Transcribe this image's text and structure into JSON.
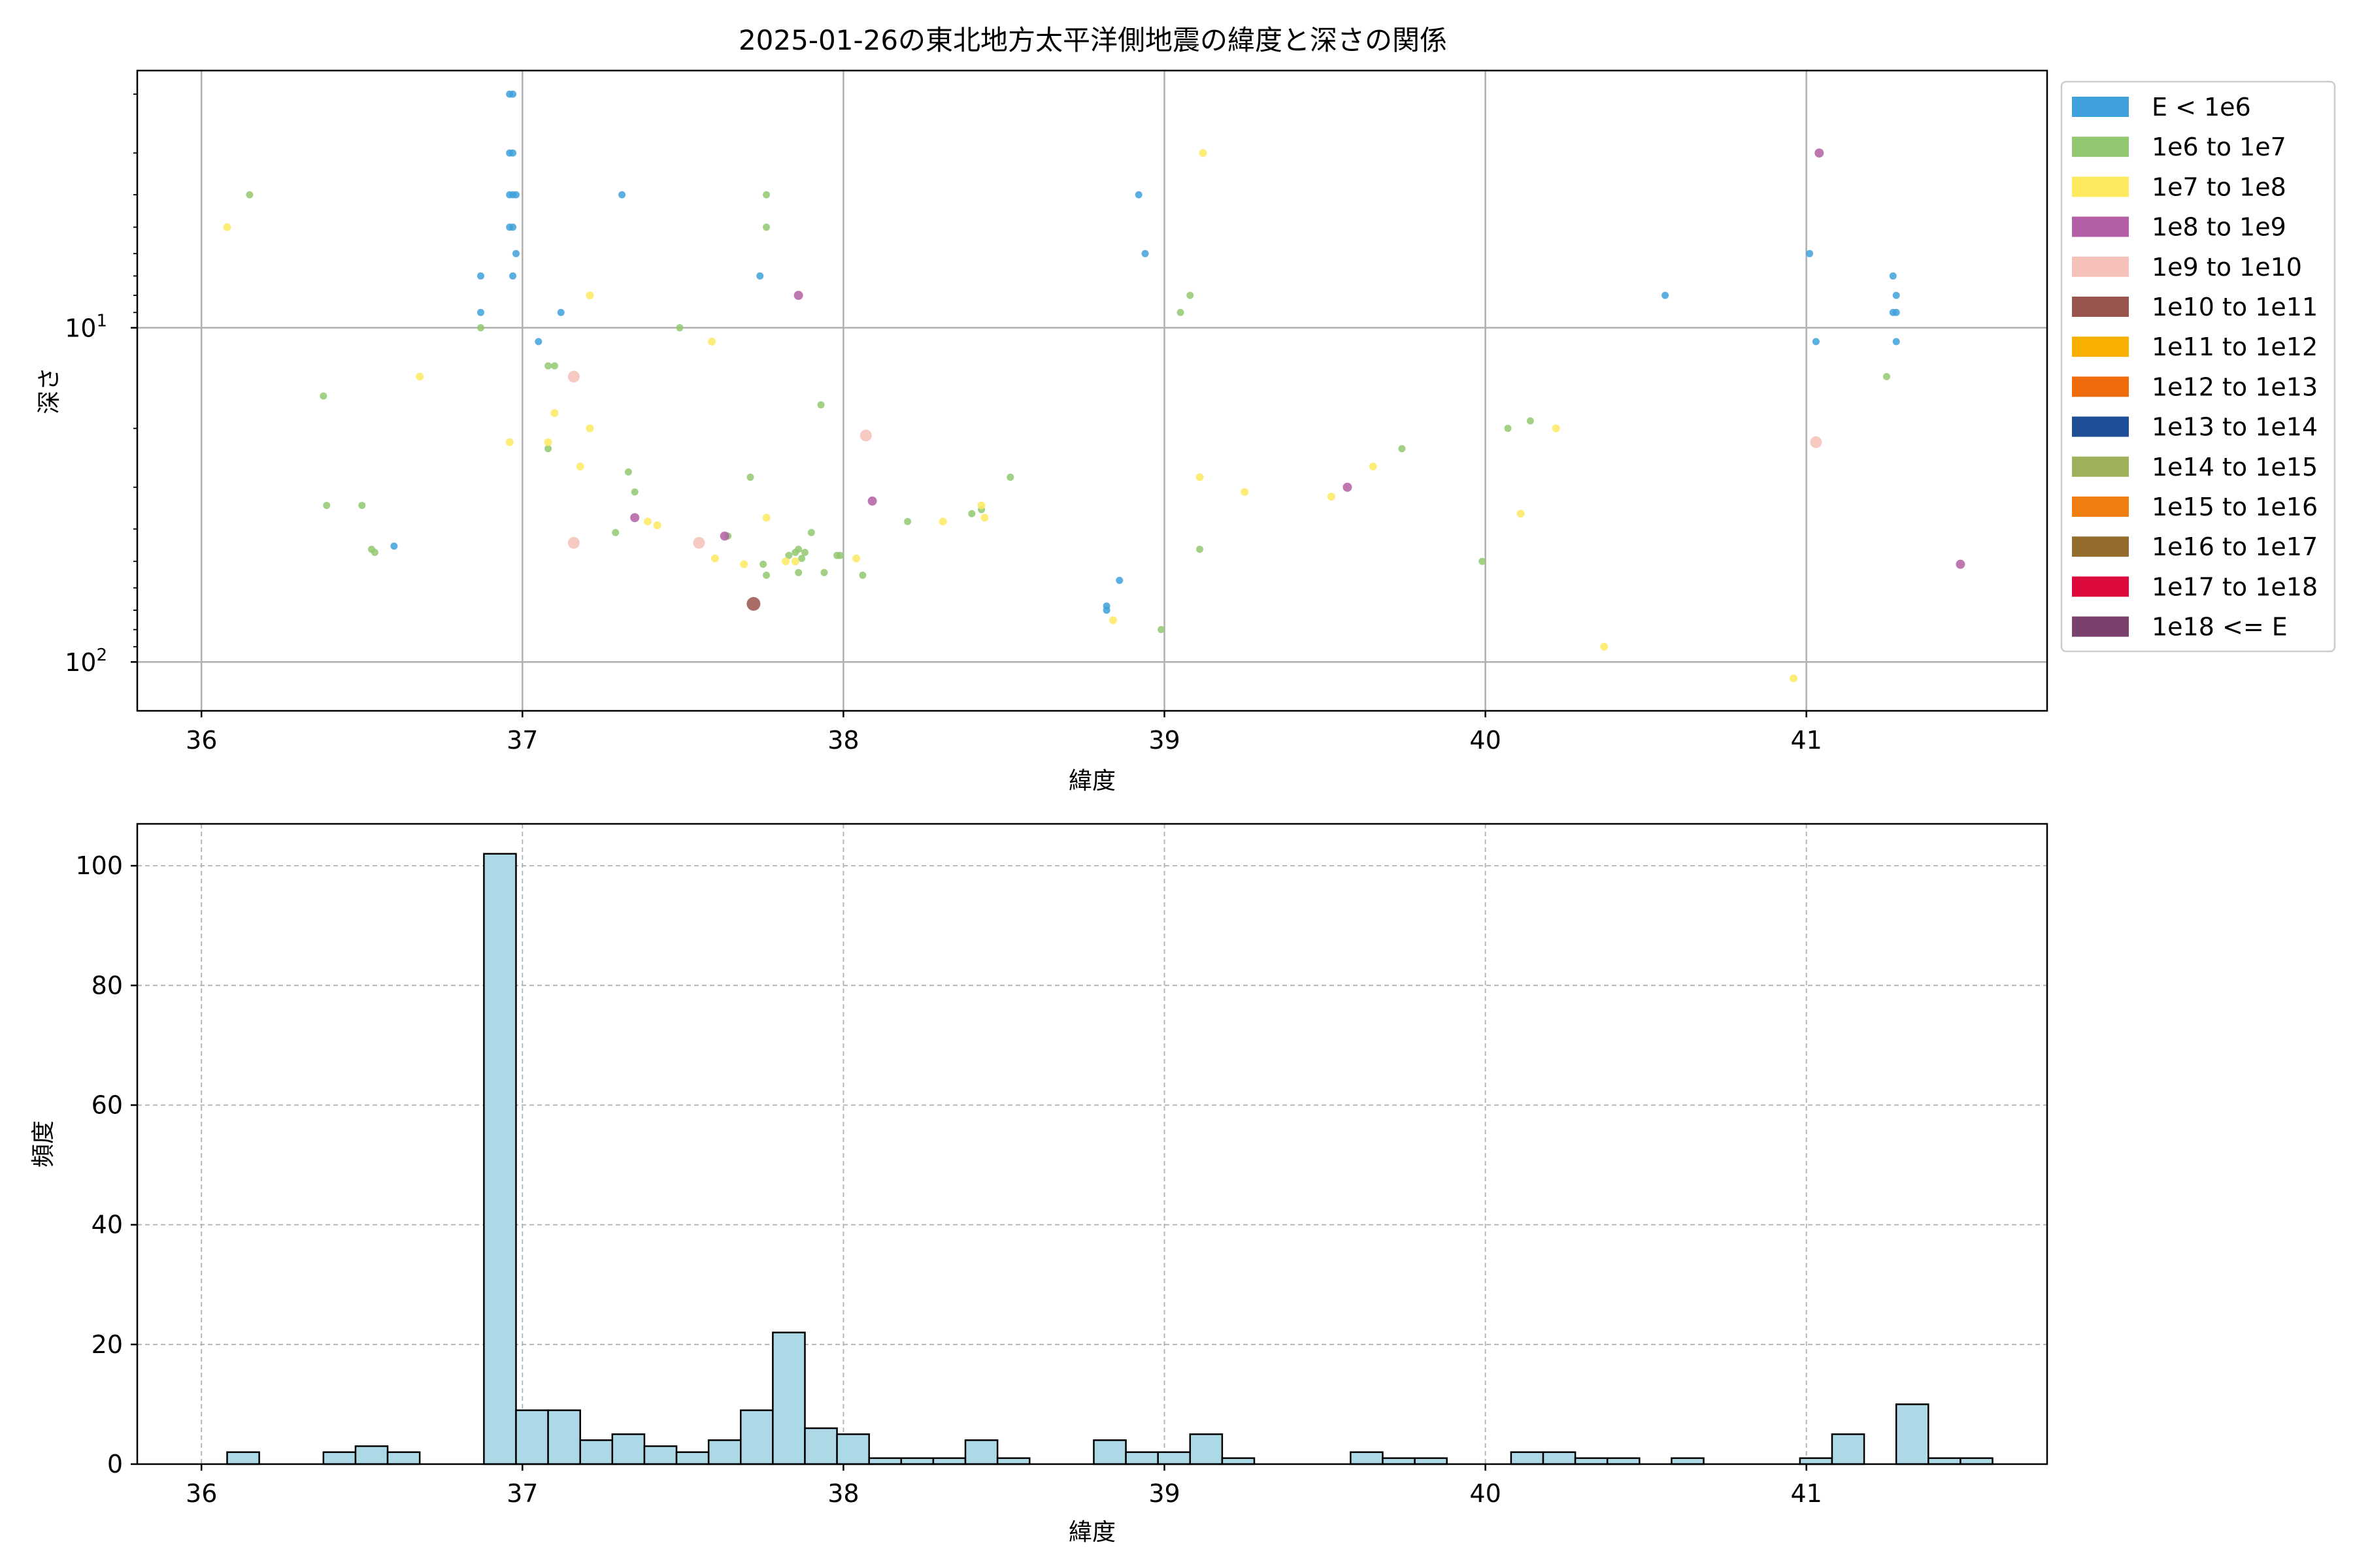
{
  "chart_data": [
    {
      "type": "scatter",
      "title": "2025-01-26の東北地方太平洋側地震の緯度と深さの関係",
      "xlabel": "緯度",
      "ylabel": "深さ",
      "xlim": [
        35.8,
        41.75
      ],
      "ylim": [
        140,
        1.7
      ],
      "yscale": "log",
      "y_inverted": true,
      "grid": true,
      "x_ticks": [
        "36",
        "37",
        "38",
        "39",
        "40",
        "41"
      ],
      "y_tick_labels": [
        {
          "value": 10,
          "base": "10",
          "exp": "1"
        },
        {
          "value": 100,
          "base": "10",
          "exp": "2"
        }
      ],
      "legend_position": "outside-right",
      "categories": [
        {
          "label": "E < 1e6",
          "color": "#3fa1dc"
        },
        {
          "label": "1e6 to 1e7",
          "color": "#92c970"
        },
        {
          "label": "1e7 to 1e8",
          "color": "#fdea60"
        },
        {
          "label": "1e8 to 1e9",
          "color": "#b45fa5"
        },
        {
          "label": "1e9 to 1e10",
          "color": "#f5c1b8"
        },
        {
          "label": "1e10 to 1e11",
          "color": "#9a544e"
        },
        {
          "label": "1e11 to 1e12",
          "color": "#f7b000"
        },
        {
          "label": "1e12 to 1e13",
          "color": "#ef6a0a"
        },
        {
          "label": "1e13 to 1e14",
          "color": "#1f4e96"
        },
        {
          "label": "1e14 to 1e15",
          "color": "#9eb15a"
        },
        {
          "label": "1e15 to 1e16",
          "color": "#ef7d10"
        },
        {
          "label": "1e16 to 1e17",
          "color": "#946c2c"
        },
        {
          "label": "1e17 to 1e18",
          "color": "#dc0a3c"
        },
        {
          "label": "1e18 <= E",
          "color": "#7a416d"
        }
      ],
      "points": [
        {
          "x": 36.97,
          "y": 2,
          "c": 0
        },
        {
          "x": 36.96,
          "y": 2,
          "c": 0
        },
        {
          "x": 36.97,
          "y": 3,
          "c": 0
        },
        {
          "x": 36.96,
          "y": 3,
          "c": 0
        },
        {
          "x": 36.97,
          "y": 4,
          "c": 0
        },
        {
          "x": 36.96,
          "y": 4,
          "c": 0
        },
        {
          "x": 36.98,
          "y": 4,
          "c": 0
        },
        {
          "x": 36.97,
          "y": 5,
          "c": 0
        },
        {
          "x": 36.96,
          "y": 5,
          "c": 0
        },
        {
          "x": 36.98,
          "y": 6,
          "c": 0
        },
        {
          "x": 36.97,
          "y": 7,
          "c": 0
        },
        {
          "x": 36.87,
          "y": 7,
          "c": 0
        },
        {
          "x": 36.87,
          "y": 9,
          "c": 0
        },
        {
          "x": 37.05,
          "y": 11,
          "c": 0
        },
        {
          "x": 37.12,
          "y": 9,
          "c": 0
        },
        {
          "x": 37.31,
          "y": 4,
          "c": 0
        },
        {
          "x": 37.74,
          "y": 7,
          "c": 0
        },
        {
          "x": 38.92,
          "y": 4,
          "c": 0
        },
        {
          "x": 38.94,
          "y": 6,
          "c": 0
        },
        {
          "x": 36.6,
          "y": 45,
          "c": 0
        },
        {
          "x": 38.82,
          "y": 68,
          "c": 0
        },
        {
          "x": 38.82,
          "y": 70,
          "c": 0
        },
        {
          "x": 38.86,
          "y": 57,
          "c": 0
        },
        {
          "x": 40.56,
          "y": 8,
          "c": 0
        },
        {
          "x": 41.01,
          "y": 6,
          "c": 0
        },
        {
          "x": 41.03,
          "y": 11,
          "c": 0
        },
        {
          "x": 41.27,
          "y": 7,
          "c": 0
        },
        {
          "x": 41.28,
          "y": 8,
          "c": 0
        },
        {
          "x": 41.27,
          "y": 9,
          "c": 0
        },
        {
          "x": 41.28,
          "y": 9,
          "c": 0
        },
        {
          "x": 41.28,
          "y": 11,
          "c": 0
        },
        {
          "x": 36.15,
          "y": 4,
          "c": 1
        },
        {
          "x": 36.38,
          "y": 16,
          "c": 1
        },
        {
          "x": 36.39,
          "y": 34,
          "c": 1
        },
        {
          "x": 36.5,
          "y": 34,
          "c": 1
        },
        {
          "x": 36.53,
          "y": 46,
          "c": 1
        },
        {
          "x": 36.54,
          "y": 47,
          "c": 1
        },
        {
          "x": 36.87,
          "y": 10,
          "c": 1
        },
        {
          "x": 37.08,
          "y": 23,
          "c": 1
        },
        {
          "x": 37.08,
          "y": 13,
          "c": 1
        },
        {
          "x": 37.1,
          "y": 13,
          "c": 1
        },
        {
          "x": 37.29,
          "y": 41,
          "c": 1
        },
        {
          "x": 37.33,
          "y": 27,
          "c": 1
        },
        {
          "x": 37.35,
          "y": 31,
          "c": 1
        },
        {
          "x": 37.49,
          "y": 10,
          "c": 1
        },
        {
          "x": 37.64,
          "y": 42,
          "c": 1
        },
        {
          "x": 37.71,
          "y": 28,
          "c": 1
        },
        {
          "x": 37.75,
          "y": 51,
          "c": 1
        },
        {
          "x": 37.76,
          "y": 55,
          "c": 1
        },
        {
          "x": 37.76,
          "y": 4,
          "c": 1
        },
        {
          "x": 37.76,
          "y": 5,
          "c": 1
        },
        {
          "x": 37.83,
          "y": 48,
          "c": 1
        },
        {
          "x": 37.85,
          "y": 47,
          "c": 1
        },
        {
          "x": 37.86,
          "y": 46,
          "c": 1
        },
        {
          "x": 37.87,
          "y": 49,
          "c": 1
        },
        {
          "x": 37.86,
          "y": 54,
          "c": 1
        },
        {
          "x": 37.88,
          "y": 47,
          "c": 1
        },
        {
          "x": 37.9,
          "y": 41,
          "c": 1
        },
        {
          "x": 37.93,
          "y": 17,
          "c": 1
        },
        {
          "x": 37.94,
          "y": 54,
          "c": 1
        },
        {
          "x": 37.98,
          "y": 48,
          "c": 1
        },
        {
          "x": 37.99,
          "y": 48,
          "c": 1
        },
        {
          "x": 38.06,
          "y": 55,
          "c": 1
        },
        {
          "x": 38.2,
          "y": 38,
          "c": 1
        },
        {
          "x": 38.4,
          "y": 36,
          "c": 1
        },
        {
          "x": 38.43,
          "y": 35,
          "c": 1
        },
        {
          "x": 38.52,
          "y": 28,
          "c": 1
        },
        {
          "x": 38.99,
          "y": 80,
          "c": 1
        },
        {
          "x": 39.05,
          "y": 9,
          "c": 1
        },
        {
          "x": 39.08,
          "y": 8,
          "c": 1
        },
        {
          "x": 39.11,
          "y": 46,
          "c": 1
        },
        {
          "x": 39.74,
          "y": 23,
          "c": 1
        },
        {
          "x": 39.99,
          "y": 50,
          "c": 1
        },
        {
          "x": 40.07,
          "y": 20,
          "c": 1
        },
        {
          "x": 40.14,
          "y": 19,
          "c": 1
        },
        {
          "x": 41.25,
          "y": 14,
          "c": 1
        },
        {
          "x": 36.08,
          "y": 5,
          "c": 2
        },
        {
          "x": 36.68,
          "y": 14,
          "c": 2
        },
        {
          "x": 36.96,
          "y": 22,
          "c": 2
        },
        {
          "x": 37.08,
          "y": 22,
          "c": 2
        },
        {
          "x": 37.1,
          "y": 18,
          "c": 2
        },
        {
          "x": 37.18,
          "y": 26,
          "c": 2
        },
        {
          "x": 37.21,
          "y": 8,
          "c": 2
        },
        {
          "x": 37.21,
          "y": 20,
          "c": 2
        },
        {
          "x": 37.39,
          "y": 38,
          "c": 2
        },
        {
          "x": 37.42,
          "y": 39,
          "c": 2
        },
        {
          "x": 37.59,
          "y": 11,
          "c": 2
        },
        {
          "x": 37.6,
          "y": 49,
          "c": 2
        },
        {
          "x": 37.69,
          "y": 51,
          "c": 2
        },
        {
          "x": 37.76,
          "y": 37,
          "c": 2
        },
        {
          "x": 37.82,
          "y": 50,
          "c": 2
        },
        {
          "x": 37.85,
          "y": 50,
          "c": 2
        },
        {
          "x": 38.04,
          "y": 49,
          "c": 2
        },
        {
          "x": 38.31,
          "y": 38,
          "c": 2
        },
        {
          "x": 38.43,
          "y": 34,
          "c": 2
        },
        {
          "x": 38.44,
          "y": 37,
          "c": 2
        },
        {
          "x": 38.84,
          "y": 75,
          "c": 2
        },
        {
          "x": 39.12,
          "y": 3,
          "c": 2
        },
        {
          "x": 39.11,
          "y": 28,
          "c": 2
        },
        {
          "x": 39.25,
          "y": 31,
          "c": 2
        },
        {
          "x": 39.52,
          "y": 32,
          "c": 2
        },
        {
          "x": 39.65,
          "y": 26,
          "c": 2
        },
        {
          "x": 40.11,
          "y": 36,
          "c": 2
        },
        {
          "x": 40.22,
          "y": 20,
          "c": 2
        },
        {
          "x": 40.37,
          "y": 90,
          "c": 2
        },
        {
          "x": 40.96,
          "y": 112,
          "c": 2
        },
        {
          "x": 37.35,
          "y": 37,
          "c": 3
        },
        {
          "x": 37.63,
          "y": 42,
          "c": 3
        },
        {
          "x": 37.86,
          "y": 8,
          "c": 3
        },
        {
          "x": 38.09,
          "y": 33,
          "c": 3
        },
        {
          "x": 39.57,
          "y": 30,
          "c": 3
        },
        {
          "x": 41.04,
          "y": 3,
          "c": 3
        },
        {
          "x": 41.48,
          "y": 51,
          "c": 3
        },
        {
          "x": 37.16,
          "y": 14,
          "c": 4
        },
        {
          "x": 37.16,
          "y": 44,
          "c": 4
        },
        {
          "x": 37.55,
          "y": 44,
          "c": 4
        },
        {
          "x": 38.07,
          "y": 21,
          "c": 4
        },
        {
          "x": 41.03,
          "y": 22,
          "c": 4
        },
        {
          "x": 37.72,
          "y": 67,
          "c": 5
        }
      ]
    },
    {
      "type": "bar",
      "subtype": "histogram",
      "xlabel": "緯度",
      "ylabel": "頻度",
      "xlim": [
        35.8,
        41.75
      ],
      "ylim": [
        0,
        107
      ],
      "x_ticks": [
        "36",
        "37",
        "38",
        "39",
        "40",
        "41"
      ],
      "y_ticks": [
        "0",
        "20",
        "40",
        "60",
        "80",
        "100"
      ],
      "grid": true,
      "bar_color": "#add8e6",
      "bin_start": 36.08,
      "bin_width": 0.1,
      "values": [
        2,
        0,
        0,
        2,
        3,
        2,
        0,
        0,
        102,
        9,
        9,
        4,
        5,
        3,
        2,
        4,
        9,
        22,
        6,
        5,
        1,
        1,
        1,
        4,
        1,
        0,
        0,
        4,
        2,
        2,
        5,
        1,
        0,
        0,
        0,
        2,
        1,
        1,
        0,
        0,
        2,
        2,
        1,
        1,
        0,
        1,
        0,
        0,
        0,
        1,
        5,
        0,
        10,
        1,
        1
      ]
    }
  ]
}
